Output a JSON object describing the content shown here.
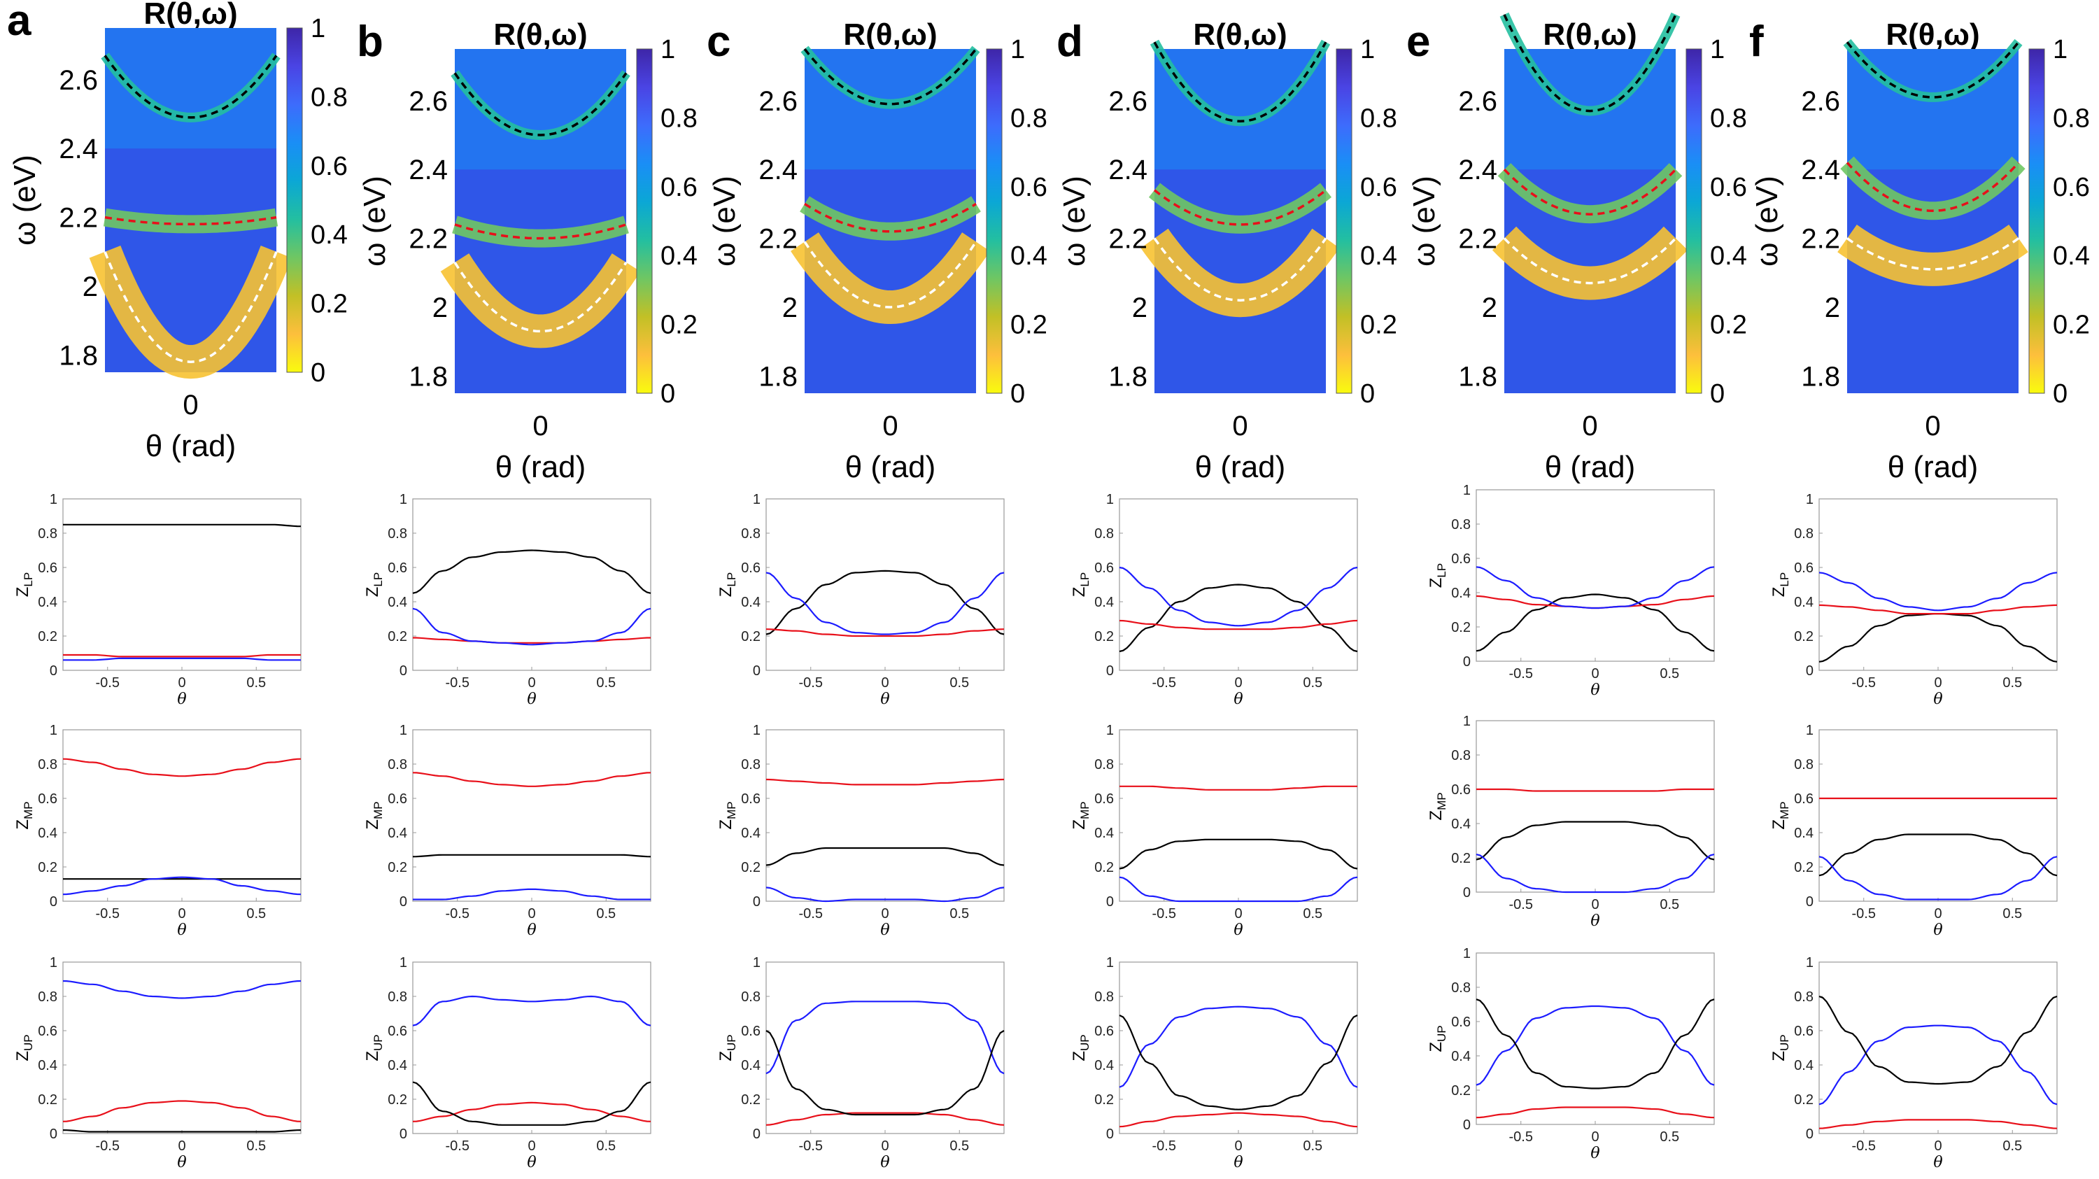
{
  "colors": {
    "black": "#000000",
    "red": "#e8101a",
    "blue": "#1c1cff",
    "white": "#ffffff",
    "colormap": [
      "#f9fb0e",
      "#fdbf3c",
      "#c2c026",
      "#6fc663",
      "#23bfa0",
      "#0ba7d5",
      "#1a8ef6",
      "#3d6cfc",
      "#4a44e4",
      "#3e26a8"
    ]
  },
  "heatmap_common": {
    "title": "R(θ,ω)",
    "xtick": "0",
    "xlabel": "θ (rad)",
    "ylabel": "ω (eV)",
    "yticks": [
      "2.6",
      "2.4",
      "2.2",
      "2",
      "1.8"
    ],
    "colorbar_ticks": [
      "1",
      "0.8",
      "0.6",
      "0.4",
      "0.2",
      "0"
    ],
    "colorbar_range": [
      0,
      1
    ]
  },
  "line_common": {
    "xlabel": "θ",
    "xticks": [
      "-0.5",
      "0",
      "0.5"
    ],
    "yticks": [
      "0",
      "0.2",
      "0.4",
      "0.6",
      "0.8",
      "1"
    ],
    "xlim": [
      -0.8,
      0.8
    ],
    "ylim": [
      0,
      1
    ],
    "ylabels": {
      "LP": {
        "base": "Z",
        "sub": "LP"
      },
      "MP": {
        "base": "Z",
        "sub": "MP"
      },
      "UP": {
        "base": "Z",
        "sub": "UP"
      }
    }
  },
  "chart_data": [
    {
      "panel": "a",
      "type": "heatmap",
      "ylim": [
        1.75,
        2.75
      ],
      "dashed_curves": {
        "black": [
          2.49,
          0.18
        ],
        "red": [
          2.18,
          0.02
        ],
        "white": [
          1.78,
          0.32
        ]
      },
      "lines": {
        "LP": {
          "black": [
            0.85,
            0.85,
            0.85,
            0.85,
            0.85,
            0.85,
            0.85,
            0.85,
            0.84
          ],
          "red": [
            0.09,
            0.09,
            0.08,
            0.08,
            0.08,
            0.08,
            0.08,
            0.09,
            0.09
          ],
          "blue": [
            0.06,
            0.06,
            0.07,
            0.07,
            0.07,
            0.07,
            0.07,
            0.06,
            0.06
          ]
        },
        "MP": {
          "red": [
            0.83,
            0.81,
            0.77,
            0.74,
            0.73,
            0.74,
            0.77,
            0.81,
            0.83
          ],
          "black": [
            0.13,
            0.13,
            0.13,
            0.13,
            0.13,
            0.13,
            0.13,
            0.13,
            0.13
          ],
          "blue": [
            0.04,
            0.06,
            0.09,
            0.13,
            0.14,
            0.13,
            0.09,
            0.06,
            0.04
          ]
        },
        "UP": {
          "blue": [
            0.89,
            0.87,
            0.83,
            0.8,
            0.79,
            0.8,
            0.83,
            0.87,
            0.89
          ],
          "red": [
            0.07,
            0.1,
            0.15,
            0.18,
            0.19,
            0.18,
            0.15,
            0.1,
            0.07
          ],
          "black": [
            0.02,
            0.01,
            0.01,
            0.01,
            0.01,
            0.01,
            0.01,
            0.01,
            0.02
          ]
        }
      }
    },
    {
      "panel": "b",
      "type": "heatmap",
      "ylim": [
        1.75,
        2.75
      ],
      "dashed_curves": {
        "black": [
          2.5,
          0.18
        ],
        "red": [
          2.2,
          0.04
        ],
        "white": [
          1.93,
          0.2
        ]
      },
      "lines": {
        "LP": {
          "black": [
            0.45,
            0.58,
            0.66,
            0.69,
            0.7,
            0.69,
            0.66,
            0.58,
            0.45
          ],
          "red": [
            0.19,
            0.18,
            0.17,
            0.16,
            0.16,
            0.16,
            0.17,
            0.18,
            0.19
          ],
          "blue": [
            0.36,
            0.22,
            0.17,
            0.16,
            0.15,
            0.16,
            0.17,
            0.22,
            0.36
          ]
        },
        "MP": {
          "red": [
            0.75,
            0.73,
            0.7,
            0.68,
            0.67,
            0.68,
            0.7,
            0.73,
            0.75
          ],
          "black": [
            0.26,
            0.27,
            0.27,
            0.27,
            0.27,
            0.27,
            0.27,
            0.27,
            0.26
          ],
          "blue": [
            0.01,
            0.01,
            0.03,
            0.06,
            0.07,
            0.06,
            0.03,
            0.01,
            0.01
          ]
        },
        "UP": {
          "blue": [
            0.63,
            0.77,
            0.8,
            0.78,
            0.77,
            0.78,
            0.8,
            0.77,
            0.63
          ],
          "red": [
            0.07,
            0.1,
            0.14,
            0.17,
            0.18,
            0.17,
            0.14,
            0.1,
            0.07
          ],
          "black": [
            0.3,
            0.13,
            0.07,
            0.05,
            0.05,
            0.05,
            0.07,
            0.13,
            0.3
          ]
        }
      }
    },
    {
      "panel": "c",
      "type": "heatmap",
      "ylim": [
        1.75,
        2.75
      ],
      "dashed_curves": {
        "black": [
          2.59,
          0.16
        ],
        "red": [
          2.22,
          0.08
        ],
        "white": [
          2.0,
          0.19
        ]
      },
      "lines": {
        "LP": {
          "black": [
            0.21,
            0.36,
            0.5,
            0.57,
            0.58,
            0.57,
            0.5,
            0.36,
            0.21
          ],
          "red": [
            0.24,
            0.23,
            0.21,
            0.2,
            0.2,
            0.2,
            0.21,
            0.23,
            0.24
          ],
          "blue": [
            0.57,
            0.42,
            0.28,
            0.22,
            0.21,
            0.22,
            0.28,
            0.42,
            0.57
          ]
        },
        "MP": {
          "red": [
            0.71,
            0.7,
            0.69,
            0.68,
            0.68,
            0.68,
            0.69,
            0.7,
            0.71
          ],
          "black": [
            0.21,
            0.28,
            0.31,
            0.31,
            0.31,
            0.31,
            0.31,
            0.28,
            0.21
          ],
          "blue": [
            0.08,
            0.02,
            0.0,
            0.01,
            0.01,
            0.01,
            0.0,
            0.02,
            0.08
          ]
        },
        "UP": {
          "blue": [
            0.35,
            0.66,
            0.76,
            0.77,
            0.77,
            0.77,
            0.76,
            0.66,
            0.35
          ],
          "red": [
            0.05,
            0.08,
            0.11,
            0.12,
            0.12,
            0.12,
            0.11,
            0.08,
            0.05
          ],
          "black": [
            0.6,
            0.26,
            0.14,
            0.11,
            0.11,
            0.11,
            0.14,
            0.26,
            0.6
          ]
        }
      }
    },
    {
      "panel": "d",
      "type": "heatmap",
      "ylim": [
        1.75,
        2.75
      ],
      "dashed_curves": {
        "black": [
          2.54,
          0.23
        ],
        "red": [
          2.24,
          0.1
        ],
        "white": [
          2.02,
          0.18
        ]
      },
      "lines": {
        "LP": {
          "black": [
            0.11,
            0.25,
            0.4,
            0.48,
            0.5,
            0.48,
            0.4,
            0.25,
            0.11
          ],
          "red": [
            0.29,
            0.27,
            0.25,
            0.24,
            0.24,
            0.24,
            0.25,
            0.27,
            0.29
          ],
          "blue": [
            0.6,
            0.48,
            0.35,
            0.28,
            0.26,
            0.28,
            0.35,
            0.48,
            0.6
          ]
        },
        "MP": {
          "red": [
            0.67,
            0.67,
            0.66,
            0.65,
            0.65,
            0.65,
            0.66,
            0.67,
            0.67
          ],
          "black": [
            0.19,
            0.3,
            0.35,
            0.36,
            0.36,
            0.36,
            0.35,
            0.3,
            0.19
          ],
          "blue": [
            0.14,
            0.03,
            0.0,
            0.0,
            0.0,
            0.0,
            0.0,
            0.03,
            0.14
          ]
        },
        "UP": {
          "blue": [
            0.27,
            0.52,
            0.68,
            0.73,
            0.74,
            0.73,
            0.68,
            0.52,
            0.27
          ],
          "red": [
            0.04,
            0.07,
            0.1,
            0.11,
            0.12,
            0.11,
            0.1,
            0.07,
            0.04
          ],
          "black": [
            0.69,
            0.41,
            0.22,
            0.16,
            0.14,
            0.16,
            0.22,
            0.41,
            0.69
          ]
        }
      }
    },
    {
      "panel": "e",
      "type": "heatmap",
      "ylim": [
        1.75,
        2.75
      ],
      "dashed_curves": {
        "black": [
          2.57,
          0.28
        ],
        "red": [
          2.27,
          0.13
        ],
        "white": [
          2.07,
          0.13
        ]
      },
      "lines": {
        "LP": {
          "black": [
            0.06,
            0.17,
            0.3,
            0.37,
            0.39,
            0.37,
            0.3,
            0.17,
            0.06
          ],
          "red": [
            0.38,
            0.36,
            0.33,
            0.32,
            0.31,
            0.32,
            0.33,
            0.36,
            0.38
          ],
          "blue": [
            0.55,
            0.47,
            0.37,
            0.32,
            0.31,
            0.32,
            0.37,
            0.47,
            0.55
          ]
        },
        "MP": {
          "red": [
            0.6,
            0.6,
            0.59,
            0.59,
            0.59,
            0.59,
            0.59,
            0.6,
            0.6
          ],
          "black": [
            0.19,
            0.32,
            0.39,
            0.41,
            0.41,
            0.41,
            0.39,
            0.32,
            0.19
          ],
          "blue": [
            0.22,
            0.08,
            0.02,
            0.0,
            0.0,
            0.0,
            0.02,
            0.08,
            0.22
          ]
        },
        "UP": {
          "blue": [
            0.23,
            0.43,
            0.62,
            0.68,
            0.69,
            0.68,
            0.62,
            0.43,
            0.23
          ],
          "red": [
            0.04,
            0.06,
            0.09,
            0.1,
            0.1,
            0.1,
            0.09,
            0.06,
            0.04
          ],
          "black": [
            0.73,
            0.52,
            0.3,
            0.22,
            0.21,
            0.22,
            0.3,
            0.52,
            0.73
          ]
        }
      }
    },
    {
      "panel": "f",
      "type": "heatmap",
      "ylim": [
        1.75,
        2.75
      ],
      "dashed_curves": {
        "black": [
          2.61,
          0.16
        ],
        "red": [
          2.28,
          0.14
        ],
        "white": [
          2.11,
          0.09
        ]
      },
      "lines": {
        "LP": {
          "black": [
            0.05,
            0.14,
            0.26,
            0.32,
            0.33,
            0.32,
            0.26,
            0.14,
            0.05
          ],
          "red": [
            0.38,
            0.37,
            0.35,
            0.33,
            0.33,
            0.33,
            0.35,
            0.37,
            0.38
          ],
          "blue": [
            0.57,
            0.51,
            0.42,
            0.37,
            0.35,
            0.37,
            0.42,
            0.51,
            0.57
          ]
        },
        "MP": {
          "red": [
            0.6,
            0.6,
            0.6,
            0.6,
            0.6,
            0.6,
            0.6,
            0.6,
            0.6
          ],
          "black": [
            0.15,
            0.28,
            0.36,
            0.39,
            0.39,
            0.39,
            0.36,
            0.28,
            0.15
          ],
          "blue": [
            0.26,
            0.12,
            0.04,
            0.01,
            0.01,
            0.01,
            0.04,
            0.12,
            0.26
          ]
        },
        "UP": {
          "blue": [
            0.17,
            0.36,
            0.54,
            0.62,
            0.63,
            0.62,
            0.54,
            0.36,
            0.17
          ],
          "red": [
            0.03,
            0.05,
            0.07,
            0.08,
            0.08,
            0.08,
            0.07,
            0.05,
            0.03
          ],
          "black": [
            0.8,
            0.59,
            0.39,
            0.3,
            0.29,
            0.3,
            0.39,
            0.59,
            0.8
          ]
        }
      }
    }
  ]
}
